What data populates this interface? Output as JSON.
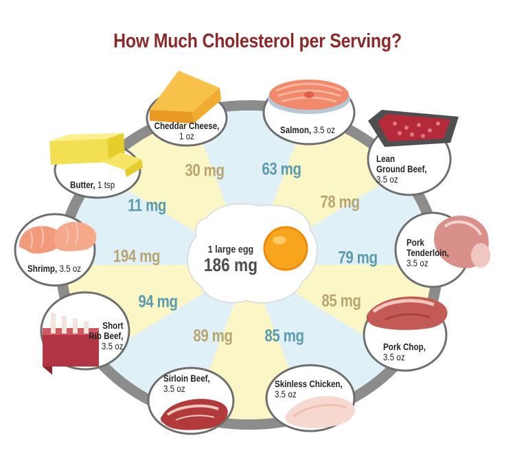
{
  "title": "How Much Cholesterol per Serving?",
  "center": {
    "label": "1 large egg",
    "value": "186 mg"
  },
  "colors": {
    "title": "#8a2a2a",
    "blue_value": "#5a9bb0",
    "tan_value": "#b9a571",
    "blue_wedge": "#dff0f6",
    "yellow_wedge": "#fbf6c5",
    "ring": "#8c8c8c"
  },
  "foods": [
    {
      "key": "cheddar",
      "name": "Cheddar Cheese,",
      "amount": "1 oz",
      "value": "30 mg",
      "tone": "tan",
      "icon": "cheese-icon"
    },
    {
      "key": "salmon",
      "name": "Salmon,",
      "amount": "3.5 oz",
      "value": "63 mg",
      "tone": "blue",
      "icon": "salmon-steak-icon"
    },
    {
      "key": "beef",
      "name": "Lean Ground Beef,",
      "name_lines": [
        "Lean",
        "Ground Beef,"
      ],
      "amount": "3.5 oz",
      "value": "78 mg",
      "tone": "tan",
      "icon": "ground-beef-tray-icon"
    },
    {
      "key": "tenderloin",
      "name": "Pork Tenderloin,",
      "name_lines": [
        "Pork",
        "Tenderloin,"
      ],
      "amount": "3.5 oz",
      "value": "79 mg",
      "tone": "blue",
      "icon": "pork-tenderloin-icon"
    },
    {
      "key": "porkchop",
      "name": "Pork Chop,",
      "amount": "3.5 oz",
      "value": "85 mg",
      "tone": "tan",
      "icon": "pork-chop-icon"
    },
    {
      "key": "chicken",
      "name": "Skinless Chicken,",
      "amount": "3.5 oz",
      "value": "85 mg",
      "tone": "blue",
      "icon": "chicken-breast-icon"
    },
    {
      "key": "sirloin",
      "name": "Sirloin Beef,",
      "amount": "3.5 oz",
      "value": "89 mg",
      "tone": "tan",
      "icon": "sirloin-steak-icon"
    },
    {
      "key": "shortrib",
      "name": "Short Rib Beef,",
      "name_lines": [
        "Short",
        "Rib Beef,"
      ],
      "amount": "3.5 oz",
      "value": "94 mg",
      "tone": "blue",
      "icon": "short-rib-icon"
    },
    {
      "key": "shrimp",
      "name": "Shrimp,",
      "amount": "3.5 oz",
      "value": "194 mg",
      "tone": "tan",
      "icon": "shrimp-icon"
    },
    {
      "key": "butter",
      "name": "Butter,",
      "amount": "1 tsp",
      "value": "11 mg",
      "tone": "blue",
      "icon": "butter-icon"
    }
  ]
}
